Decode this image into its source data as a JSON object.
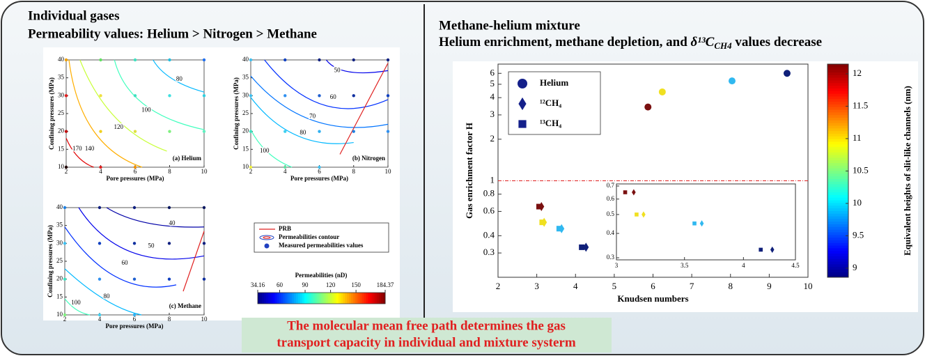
{
  "left_panel": {
    "title_lines": [
      "Individual gases",
      "Permeability values: Helium > Nitrogen > Methane"
    ],
    "legend": [
      "PRB",
      "Permeabilities contour",
      "Measured permeabilities values"
    ],
    "colorbar": {
      "title": "Permeabilities (nD)",
      "lim": [
        34.16,
        184.37
      ],
      "ticks": [
        34.16,
        60,
        90,
        120,
        150,
        184.37
      ]
    }
  },
  "right_panel": {
    "title_line1": "Methane-helium mixture",
    "title_line2_prefix": "Helium enrichment, methane depletion, and ",
    "title_line2_symbol": "δ¹³C",
    "title_line2_subscript": "CH4",
    "title_line2_suffix": " values decrease"
  },
  "banner": {
    "lines": [
      "The molecular mean free path determines the gas",
      "transport capacity in individual and mixture systerm"
    ]
  },
  "chart_data": [
    {
      "type": "contour",
      "panel_label": "(a) Helium",
      "xlabel": "Pore pressures (MPa)",
      "ylabel": "Confining pressures (MPa)",
      "xlim": [
        2,
        10
      ],
      "ylim": [
        10,
        40
      ],
      "xticks": [
        2,
        4,
        6,
        8,
        10
      ],
      "yticks": [
        10,
        15,
        20,
        25,
        30,
        35,
        40
      ],
      "levels": [
        170,
        140,
        120,
        100,
        80
      ],
      "points": {
        "x": [
          2,
          4,
          6,
          8,
          10,
          2,
          4,
          6,
          8,
          10,
          2,
          4,
          6,
          8,
          10,
          2,
          4,
          6
        ],
        "y": [
          40,
          40,
          40,
          40,
          40,
          30,
          30,
          30,
          30,
          30,
          20,
          20,
          20,
          20,
          20,
          10,
          10,
          10
        ],
        "colors": [
          "#f0a000",
          "#60e060",
          "#40e0c0",
          "#20c0e0",
          "#2070f0",
          "#e02020",
          "#f0e040",
          "#40e0c0",
          "#40e0e0",
          "#30d0e0",
          "#c01010",
          "#f0d020",
          "#e0e040",
          "#80f080",
          "#60f0c0",
          "#200000",
          "#e02020",
          "#f09000"
        ]
      }
    },
    {
      "type": "contour",
      "panel_label": "(b) Nitrogen",
      "xlabel": "Pore pressures (MPa)",
      "ylabel": "Confining pressures (MPa)",
      "xlim": [
        2,
        10
      ],
      "ylim": [
        10,
        40
      ],
      "xticks": [
        2,
        4,
        6,
        8,
        10
      ],
      "yticks": [
        10,
        15,
        20,
        25,
        30,
        35,
        40
      ],
      "levels": [
        50,
        60,
        70,
        80,
        100
      ],
      "points": {
        "x": [
          2,
          4,
          6,
          8,
          10,
          2,
          4,
          6,
          8,
          10,
          2,
          4,
          6,
          8,
          10,
          2,
          4,
          6
        ],
        "y": [
          40,
          40,
          40,
          40,
          40,
          30,
          30,
          30,
          30,
          30,
          20,
          20,
          20,
          20,
          20,
          10,
          10,
          10
        ],
        "colors": [
          "#40c0f0",
          "#1040c0",
          "#102080",
          "#102080",
          "#102080",
          "#40c0f0",
          "#3090f0",
          "#2060d0",
          "#1030a0",
          "#1040c0",
          "#40e0c0",
          "#40d0f0",
          "#30b0f0",
          "#2080e0",
          "#3090f0",
          "#f0f040",
          "#60e0a0",
          "#40c0f0"
        ]
      }
    },
    {
      "type": "contour",
      "panel_label": "(c) Methane",
      "xlabel": "Pore pressures (MPa)",
      "ylabel": "Confining pressures (MPa)",
      "xlim": [
        2,
        10
      ],
      "ylim": [
        10,
        40
      ],
      "xticks": [
        2,
        4,
        6,
        8,
        10
      ],
      "yticks": [
        10,
        15,
        20,
        25,
        30,
        35,
        40
      ],
      "levels": [
        40,
        50,
        60,
        80,
        100
      ],
      "points": {
        "x": [
          2,
          4,
          6,
          8,
          10,
          2,
          4,
          6,
          8,
          10,
          2,
          4,
          6,
          8,
          10,
          2,
          4,
          6
        ],
        "y": [
          40,
          40,
          40,
          40,
          40,
          30,
          30,
          30,
          30,
          30,
          20,
          20,
          20,
          20,
          20,
          10,
          10,
          10
        ],
        "colors": [
          "#2080e0",
          "#102080",
          "#102080",
          "#0a1860",
          "#0a1860",
          "#40c0f0",
          "#1040c0",
          "#1030a0",
          "#102080",
          "#102080",
          "#40e0c0",
          "#3090f0",
          "#2060d0",
          "#1040c0",
          "#1030a0",
          "#80f080",
          "#40d0f0",
          "#30b0f0"
        ]
      }
    },
    {
      "type": "scatter",
      "xlabel": "Knudsen numbers",
      "ylabel": "Gas enrichment factor H",
      "xlim": [
        2,
        10
      ],
      "ylim": [
        0.2,
        7
      ],
      "log_y": true,
      "xticks": [
        2,
        3,
        4,
        5,
        6,
        7,
        8,
        9,
        10
      ],
      "yticks": [
        0.3,
        0.4,
        0.6,
        0.8,
        1,
        2,
        3,
        4,
        5,
        6
      ],
      "reference_line": {
        "value": 1,
        "color": "#e02020"
      },
      "series": [
        {
          "name": "Helium",
          "marker": "circle",
          "legend_color": "#14208a",
          "x": [
            5.87,
            6.24,
            8.04,
            9.46
          ],
          "y": [
            3.42,
            4.4,
            5.29,
            6
          ],
          "colors": [
            "#7a1010",
            "#f0e020",
            "#30b8f0",
            "#10207a"
          ]
        },
        {
          "name": "¹²CH₄",
          "marker": "diamond",
          "legend_color": "#14208a",
          "x": [
            3.12,
            3.19,
            3.64,
            4.27
          ],
          "y": [
            0.65,
            0.5,
            0.45,
            0.33
          ],
          "colors": [
            "#7a1010",
            "#f0e020",
            "#30b8f0",
            "#10207a"
          ]
        },
        {
          "name": "¹³CH₄",
          "marker": "square",
          "legend_color": "#14208a",
          "x": [
            3.06,
            3.14,
            3.58,
            4.16
          ],
          "y": [
            0.65,
            0.5,
            0.45,
            0.33
          ],
          "colors": [
            "#7a1010",
            "#f0e020",
            "#30b8f0",
            "#10207a"
          ]
        }
      ],
      "inset": {
        "xlim": [
          3,
          4.5
        ],
        "ylim": [
          0.3,
          0.7
        ],
        "log_x": true,
        "log_y": true,
        "xticks": [
          3,
          3.5,
          4,
          4.5
        ],
        "yticks": [
          0.3,
          0.4,
          0.5,
          0.6,
          0.7
        ]
      },
      "colorbar": {
        "label": "Equivalent heights of slit-like channels (nm)",
        "lim": [
          8.86,
          12.15
        ],
        "ticks": [
          9,
          9.5,
          10,
          10.5,
          11,
          11.5,
          12
        ]
      }
    }
  ]
}
